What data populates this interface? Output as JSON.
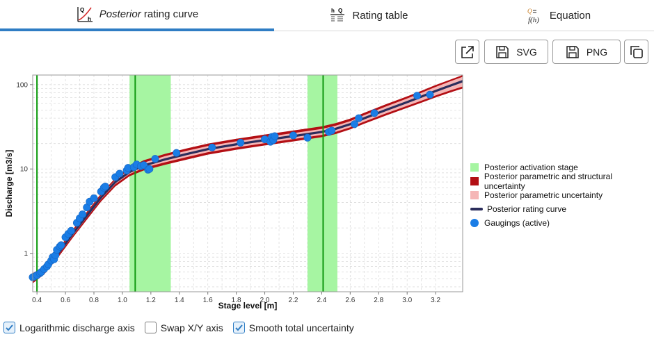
{
  "tabs": [
    {
      "label_italic": "Posterior",
      "label_rest": " rating curve",
      "icon": "rating-curve-icon",
      "active": true
    },
    {
      "label_italic": "",
      "label_rest": "Rating table",
      "icon": "table-icon",
      "active": false
    },
    {
      "label_italic": "",
      "label_rest": "Equation",
      "icon": "equation-icon",
      "active": false
    }
  ],
  "icon_text": {
    "q": "Q",
    "h": "h",
    "eq": "f(h)"
  },
  "toolbar": {
    "svg_label": "SVG",
    "png_label": "PNG"
  },
  "legend": [
    {
      "label": "Posterior activation stage",
      "color": "#a6f5a2"
    },
    {
      "label": "Posterior parametric and structural uncertainty",
      "color": "#b30f14"
    },
    {
      "label": "Posterior parametric uncertainty",
      "color": "#f5b6b6"
    },
    {
      "label": "Posterior rating curve",
      "color": "#2b2d5c"
    },
    {
      "label": "Gaugings (active)",
      "color": "#1a7de6"
    }
  ],
  "options": [
    {
      "label": "Logarithmic discharge axis",
      "checked": true
    },
    {
      "label": "Swap X/Y axis",
      "checked": false
    },
    {
      "label": "Smooth total uncertainty",
      "checked": true
    }
  ],
  "chart_data": {
    "type": "line",
    "xlabel": "Stage level [m]",
    "ylabel": "Discharge [m3/s]",
    "xlim": [
      0.37,
      3.39
    ],
    "ylim": [
      0.35,
      130
    ],
    "log_y": true,
    "x_ticks": [
      "0.4",
      "0.6",
      "0.8",
      "1.0",
      "1.2",
      "1.4",
      "1.6",
      "1.8",
      "2.0",
      "2.2",
      "2.4",
      "2.6",
      "2.8",
      "3.0",
      "3.2"
    ],
    "y_ticks": [
      "1",
      "10",
      "100"
    ],
    "activation_stage": [
      {
        "center": 0.4,
        "band": [
          0.395,
          0.405
        ]
      },
      {
        "center": 1.09,
        "band": [
          1.05,
          1.34
        ]
      },
      {
        "center": 2.41,
        "band": [
          2.3,
          2.51
        ]
      }
    ],
    "rating_curve": {
      "x": [
        0.37,
        0.45,
        0.55,
        0.65,
        0.75,
        0.85,
        0.95,
        1.05,
        1.15,
        1.3,
        1.45,
        1.6,
        1.8,
        2.0,
        2.2,
        2.4,
        2.5,
        2.6,
        2.7,
        2.85,
        3.0,
        3.1,
        3.2,
        3.3,
        3.39
      ],
      "y": [
        0.5,
        0.62,
        1.0,
        1.7,
        2.8,
        4.6,
        7.0,
        9.2,
        11.0,
        13.0,
        15.0,
        17.2,
        19.6,
        22.0,
        24.5,
        27.5,
        30.0,
        34.0,
        40.0,
        50.0,
        62.0,
        72.0,
        84.0,
        97.0,
        110.0
      ]
    },
    "parametric_uncertainty": {
      "lower": [
        0.47,
        0.59,
        0.95,
        1.6,
        2.65,
        4.35,
        6.6,
        8.7,
        10.3,
        12.0,
        13.8,
        15.8,
        18.0,
        20.2,
        22.6,
        25.3,
        27.6,
        31.2,
        36.5,
        45.5,
        56.0,
        64.5,
        74.5,
        85.0,
        95.0
      ],
      "upper": [
        0.54,
        0.66,
        1.06,
        1.8,
        2.95,
        4.85,
        7.4,
        9.8,
        11.9,
        14.2,
        16.4,
        18.7,
        21.3,
        23.9,
        26.6,
        29.8,
        32.6,
        36.9,
        43.6,
        55.0,
        68.5,
        80.0,
        94.0,
        109.0,
        124.0
      ]
    },
    "total_uncertainty": {
      "lower": [
        0.44,
        0.56,
        0.9,
        1.52,
        2.5,
        4.1,
        6.2,
        8.2,
        9.6,
        11.2,
        12.9,
        14.8,
        16.9,
        19.0,
        21.2,
        23.8,
        26.0,
        29.5,
        34.5,
        43.0,
        53.0,
        61.0,
        70.5,
        80.5,
        90.0
      ],
      "upper": [
        0.58,
        0.7,
        1.12,
        1.9,
        3.1,
        5.1,
        7.8,
        10.4,
        12.7,
        15.1,
        17.5,
        20.0,
        22.8,
        25.6,
        28.6,
        32.0,
        35.0,
        39.5,
        46.5,
        58.5,
        72.5,
        84.5,
        99.0,
        114.0,
        130.0
      ]
    },
    "gaugings": {
      "x": [
        0.37,
        0.38,
        0.4,
        0.42,
        0.43,
        0.45,
        0.47,
        0.48,
        0.5,
        0.51,
        0.52,
        0.53,
        0.54,
        0.56,
        0.57,
        0.6,
        0.62,
        0.64,
        0.68,
        0.7,
        0.72,
        0.75,
        0.77,
        0.8,
        0.85,
        0.87,
        0.88,
        0.95,
        0.98,
        1.03,
        1.04,
        1.08,
        1.1,
        1.13,
        1.15,
        1.18,
        1.19,
        1.23,
        1.38,
        1.63,
        1.83,
        2.0,
        2.04,
        2.05,
        2.06,
        2.07,
        2.2,
        2.3,
        2.45,
        2.47,
        2.63,
        2.66,
        2.77,
        3.07,
        3.16
      ],
      "y": [
        0.52,
        0.53,
        0.55,
        0.58,
        0.6,
        0.65,
        0.7,
        0.74,
        0.82,
        0.9,
        0.85,
        0.95,
        1.1,
        1.2,
        1.25,
        1.55,
        1.7,
        1.85,
        2.3,
        2.6,
        2.9,
        3.5,
        4.1,
        4.5,
        5.4,
        6.0,
        6.2,
        8.0,
        8.8,
        9.6,
        10.3,
        10.5,
        11.3,
        10.8,
        11.1,
        9.8,
        10.0,
        13.2,
        15.5,
        18.0,
        20.5,
        22.5,
        21.0,
        24.0,
        22.0,
        24.5,
        25.0,
        23.5,
        27.5,
        28.5,
        34.0,
        40.0,
        46.0,
        74.0,
        76.0
      ]
    }
  }
}
